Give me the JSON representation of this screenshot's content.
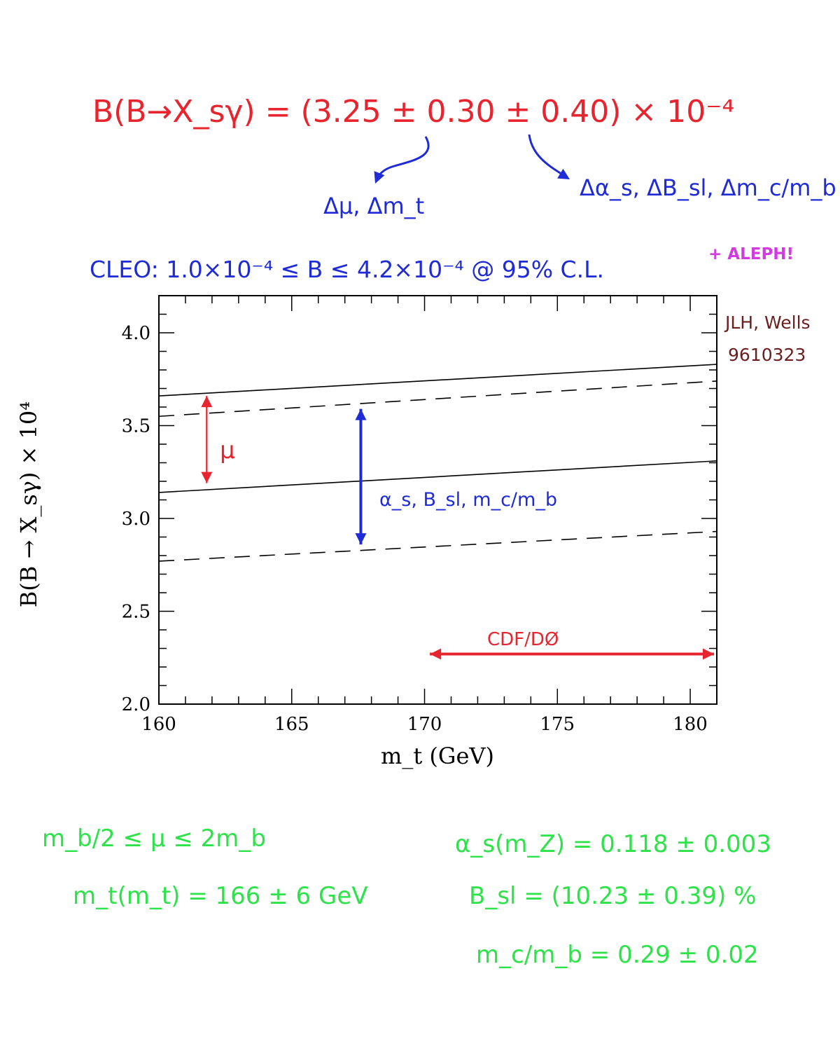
{
  "annotations": {
    "formula": "B(B→X_sγ) = (3.25 ± 0.30 ± 0.40) × 10⁻⁴",
    "err1_label": "Δμ, Δm_t",
    "err2_label": "Δα_s, ΔB_sl, Δm_c/m_b",
    "cleo": "CLEO:  1.0×10⁻⁴ ≤ B ≤ 4.2×10⁻⁴  @ 95% C.L.",
    "aleph": "+ ALEPH!",
    "ref_line1": "JLH, Wells",
    "ref_line2": "9610323",
    "mu_label": "μ",
    "alpha_label": "α_s, B_sl, m_c/m_b",
    "cdf_label": "CDF/DØ",
    "inputs": {
      "mu_range": "m_b/2 ≤ μ ≤ 2m_b",
      "mt": "m_t(m_t) = 166 ± 6 GeV",
      "alpha_s": "α_s(m_Z) = 0.118 ± 0.003",
      "bsl": "B_sl   = (10.23 ± 0.39) %",
      "mcmb": "m_c/m_b  = 0.29 ± 0.02"
    }
  },
  "colors": {
    "red": "#e8252e",
    "blue": "#1f2bd6",
    "magenta": "#d23be0",
    "brown": "#6a1f1f",
    "green": "#2ee24a",
    "axis": "#000000"
  },
  "chart_data": {
    "type": "line",
    "title": "",
    "xlabel": "m_t (GeV)",
    "ylabel": "B(B → X_sγ) × 10⁴",
    "xlim": [
      160,
      181
    ],
    "ylim": [
      2.0,
      4.2
    ],
    "x_ticks": [
      160,
      165,
      170,
      175,
      180
    ],
    "x_tick_labels": [
      "160",
      "165",
      "170",
      "175",
      "180"
    ],
    "y_ticks": [
      2.0,
      2.5,
      3.0,
      3.5,
      4.0
    ],
    "y_tick_labels": [
      "2.0",
      "2.5",
      "3.0",
      "3.5",
      "4.0"
    ],
    "grid": false,
    "series": [
      {
        "style": "solid",
        "x": [
          160,
          181
        ],
        "y": [
          3.66,
          3.83
        ]
      },
      {
        "style": "dashed",
        "x": [
          160,
          181
        ],
        "y": [
          3.55,
          3.74
        ]
      },
      {
        "style": "solid",
        "x": [
          160,
          181
        ],
        "y": [
          3.14,
          3.31
        ]
      },
      {
        "style": "dashed",
        "x": [
          160,
          181
        ],
        "y": [
          2.77,
          2.93
        ]
      }
    ],
    "annotation_arrows": [
      {
        "label": "μ",
        "color": "red",
        "x": 161.8,
        "y_from": 3.19,
        "y_to": 3.66
      },
      {
        "label": "α_s, B_sl, m_c/m_b",
        "color": "blue",
        "x": 167.6,
        "y_from": 2.86,
        "y_to": 3.59
      },
      {
        "label": "CDF/DØ",
        "color": "red",
        "y": 2.27,
        "x_from": 170.2,
        "x_to": 181
      }
    ]
  }
}
